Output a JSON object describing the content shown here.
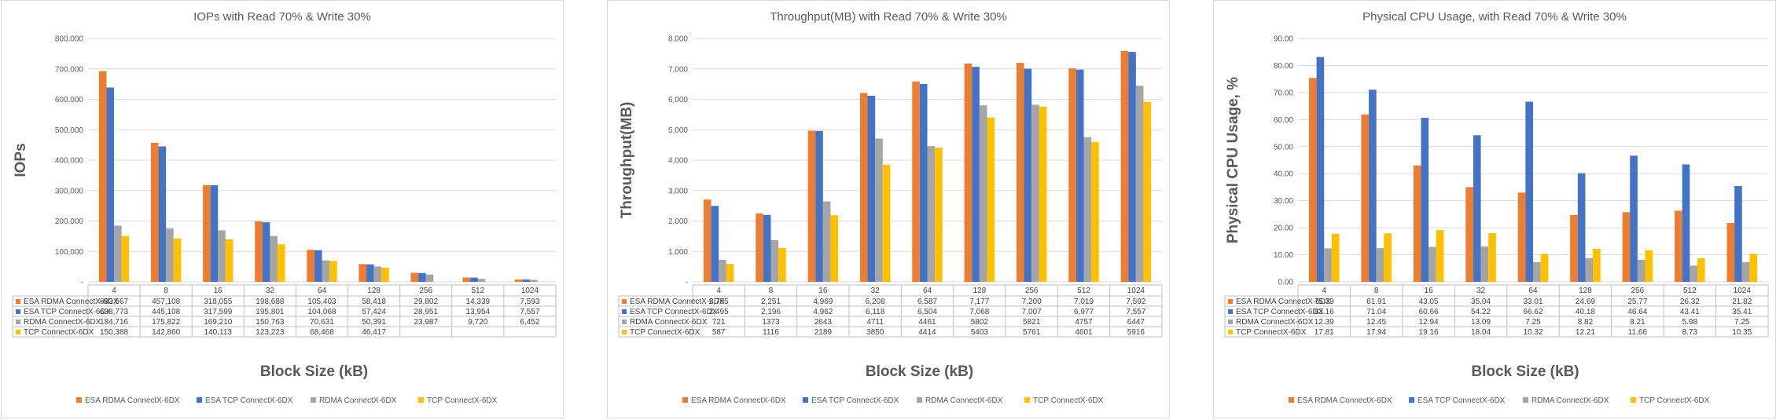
{
  "colors": {
    "ESA RDMA ConnectX-6DX": "#ED7D31",
    "ESA TCP ConnectX-6DX": "#4472C4",
    "RDMA ConnectX-6DX": "#A5A5A5",
    "TCP ConnectX-6DX": "#FFC000"
  },
  "chart_data": [
    {
      "type": "bar",
      "title": "IOPs with Read 70% & Write 30%",
      "xlabel": "Block Size (kB)",
      "ylabel": "IOPs",
      "ylim": [
        0,
        800000
      ],
      "yticks": [
        "-",
        "100,000",
        "200,000",
        "300,000",
        "400,000",
        "500,000",
        "600,000",
        "700,000",
        "800,000"
      ],
      "grid": true,
      "legend": "bottom",
      "categories": [
        "4",
        "8",
        "16",
        "32",
        "64",
        "128",
        "256",
        "512",
        "1024"
      ],
      "series": [
        {
          "name": "ESA RDMA ConnectX-6DX",
          "values": [
            692567,
            457108,
            318055,
            198688,
            105403,
            58418,
            29802,
            14339,
            7593
          ],
          "labels": [
            "692,567",
            "457,108",
            "318,055",
            "198,688",
            "105,403",
            "58,418",
            "29,802",
            "14,339",
            "7,593"
          ]
        },
        {
          "name": "ESA TCP ConnectX-6DX",
          "values": [
            638773,
            445108,
            317599,
            195801,
            104068,
            57424,
            28951,
            13954,
            7557
          ],
          "labels": [
            "638,773",
            "445,108",
            "317,599",
            "195,801",
            "104,068",
            "57,424",
            "28,951",
            "13,954",
            "7,557"
          ]
        },
        {
          "name": "RDMA ConnectX-6DX",
          "values": [
            184716,
            175822,
            169210,
            150763,
            70631,
            50391,
            23987,
            9720,
            6452
          ],
          "labels": [
            "184,716",
            "175,822",
            "169,210",
            "150,763",
            "70,631",
            "50,391",
            "23,987",
            "9,720",
            "6,452"
          ]
        },
        {
          "name": "TCP ConnectX-6DX",
          "values": [
            150388,
            142860,
            140113,
            123223,
            68468,
            46417,
            null,
            null,
            null
          ],
          "labels": [
            "150,388",
            "142,860",
            "140,113",
            "123,223",
            "68,468",
            "46,417",
            "",
            "",
            ""
          ]
        }
      ]
    },
    {
      "type": "bar",
      "title": "Throughput(MB) with Read 70% & Write 30%",
      "xlabel": "Block Size (kB)",
      "ylabel": "Throughput(MB)",
      "ylim": [
        0,
        8000
      ],
      "yticks": [
        "-",
        "1,000",
        "2,000",
        "3,000",
        "4,000",
        "5,000",
        "6,000",
        "7,000",
        "8,000"
      ],
      "grid": true,
      "legend": "bottom",
      "categories": [
        "4",
        "8",
        "16",
        "32",
        "64",
        "128",
        "256",
        "512",
        "1024"
      ],
      "series": [
        {
          "name": "ESA RDMA ConnectX-6DX",
          "values": [
            2705,
            2251,
            4969,
            6208,
            6587,
            7177,
            7200,
            7019,
            7592
          ],
          "labels": [
            "2,705",
            "2,251",
            "4,969",
            "6,208",
            "6,587",
            "7,177",
            "7,200",
            "7,019",
            "7,592"
          ]
        },
        {
          "name": "ESA TCP ConnectX-6DX",
          "values": [
            2495,
            2196,
            4962,
            6118,
            6504,
            7068,
            7007,
            6977,
            7557
          ],
          "labels": [
            "2,495",
            "2,196",
            "4,962",
            "6,118",
            "6,504",
            "7,068",
            "7,007",
            "6,977",
            "7,557"
          ]
        },
        {
          "name": "RDMA ConnectX-6DX",
          "values": [
            721,
            1373,
            2643,
            4711,
            4461,
            5802,
            5821,
            4757,
            6447
          ],
          "labels": [
            "721",
            "1373",
            "2643",
            "4711",
            "4461",
            "5802",
            "5821",
            "4757",
            "6447"
          ]
        },
        {
          "name": "TCP ConnectX-6DX",
          "values": [
            587,
            1116,
            2189,
            3850,
            4414,
            5403,
            5761,
            4601,
            5916
          ],
          "labels": [
            "587",
            "1116",
            "2189",
            "3850",
            "4414",
            "5403",
            "5761",
            "4601",
            "5916"
          ]
        }
      ]
    },
    {
      "type": "bar",
      "title": "Physical CPU Usage, with Read 70% & Write 30%",
      "xlabel": "Block Size (kB)",
      "ylabel": "Physical CPU Usage, %",
      "ylim": [
        0,
        90
      ],
      "yticks": [
        "0.00",
        "10.00",
        "20.00",
        "30.00",
        "40.00",
        "50.00",
        "60.00",
        "70.00",
        "80.00",
        "90.00"
      ],
      "grid": true,
      "legend": "bottom",
      "categories": [
        "4",
        "8",
        "16",
        "32",
        "64",
        "128",
        "256",
        "512",
        "1024"
      ],
      "series": [
        {
          "name": "ESA RDMA ConnectX-6DX",
          "values": [
            75.39,
            61.91,
            43.05,
            35.04,
            33.01,
            24.69,
            25.77,
            26.32,
            21.82
          ],
          "labels": [
            "75.39",
            "61.91",
            "43.05",
            "35.04",
            "33.01",
            "24.69",
            "25.77",
            "26.32",
            "21.82"
          ]
        },
        {
          "name": "ESA TCP ConnectX-6DX",
          "values": [
            83.16,
            71.04,
            60.66,
            54.22,
            66.62,
            40.18,
            46.64,
            43.41,
            35.41
          ],
          "labels": [
            "83.16",
            "71.04",
            "60.66",
            "54.22",
            "66.62",
            "40.18",
            "46.64",
            "43.41",
            "35.41"
          ]
        },
        {
          "name": "RDMA ConnectX-6DX",
          "values": [
            12.39,
            12.45,
            12.94,
            13.09,
            7.25,
            8.82,
            8.21,
            5.98,
            7.25
          ],
          "labels": [
            "12.39",
            "12.45",
            "12.94",
            "13.09",
            "7.25",
            "8.82",
            "8.21",
            "5.98",
            "7.25"
          ]
        },
        {
          "name": "TCP ConnectX-6DX",
          "values": [
            17.81,
            17.94,
            19.16,
            18.04,
            10.32,
            12.21,
            11.66,
            8.73,
            10.35
          ],
          "labels": [
            "17.81",
            "17.94",
            "19.16",
            "18.04",
            "10.32",
            "12.21",
            "11.66",
            "8.73",
            "10.35"
          ]
        }
      ]
    }
  ]
}
